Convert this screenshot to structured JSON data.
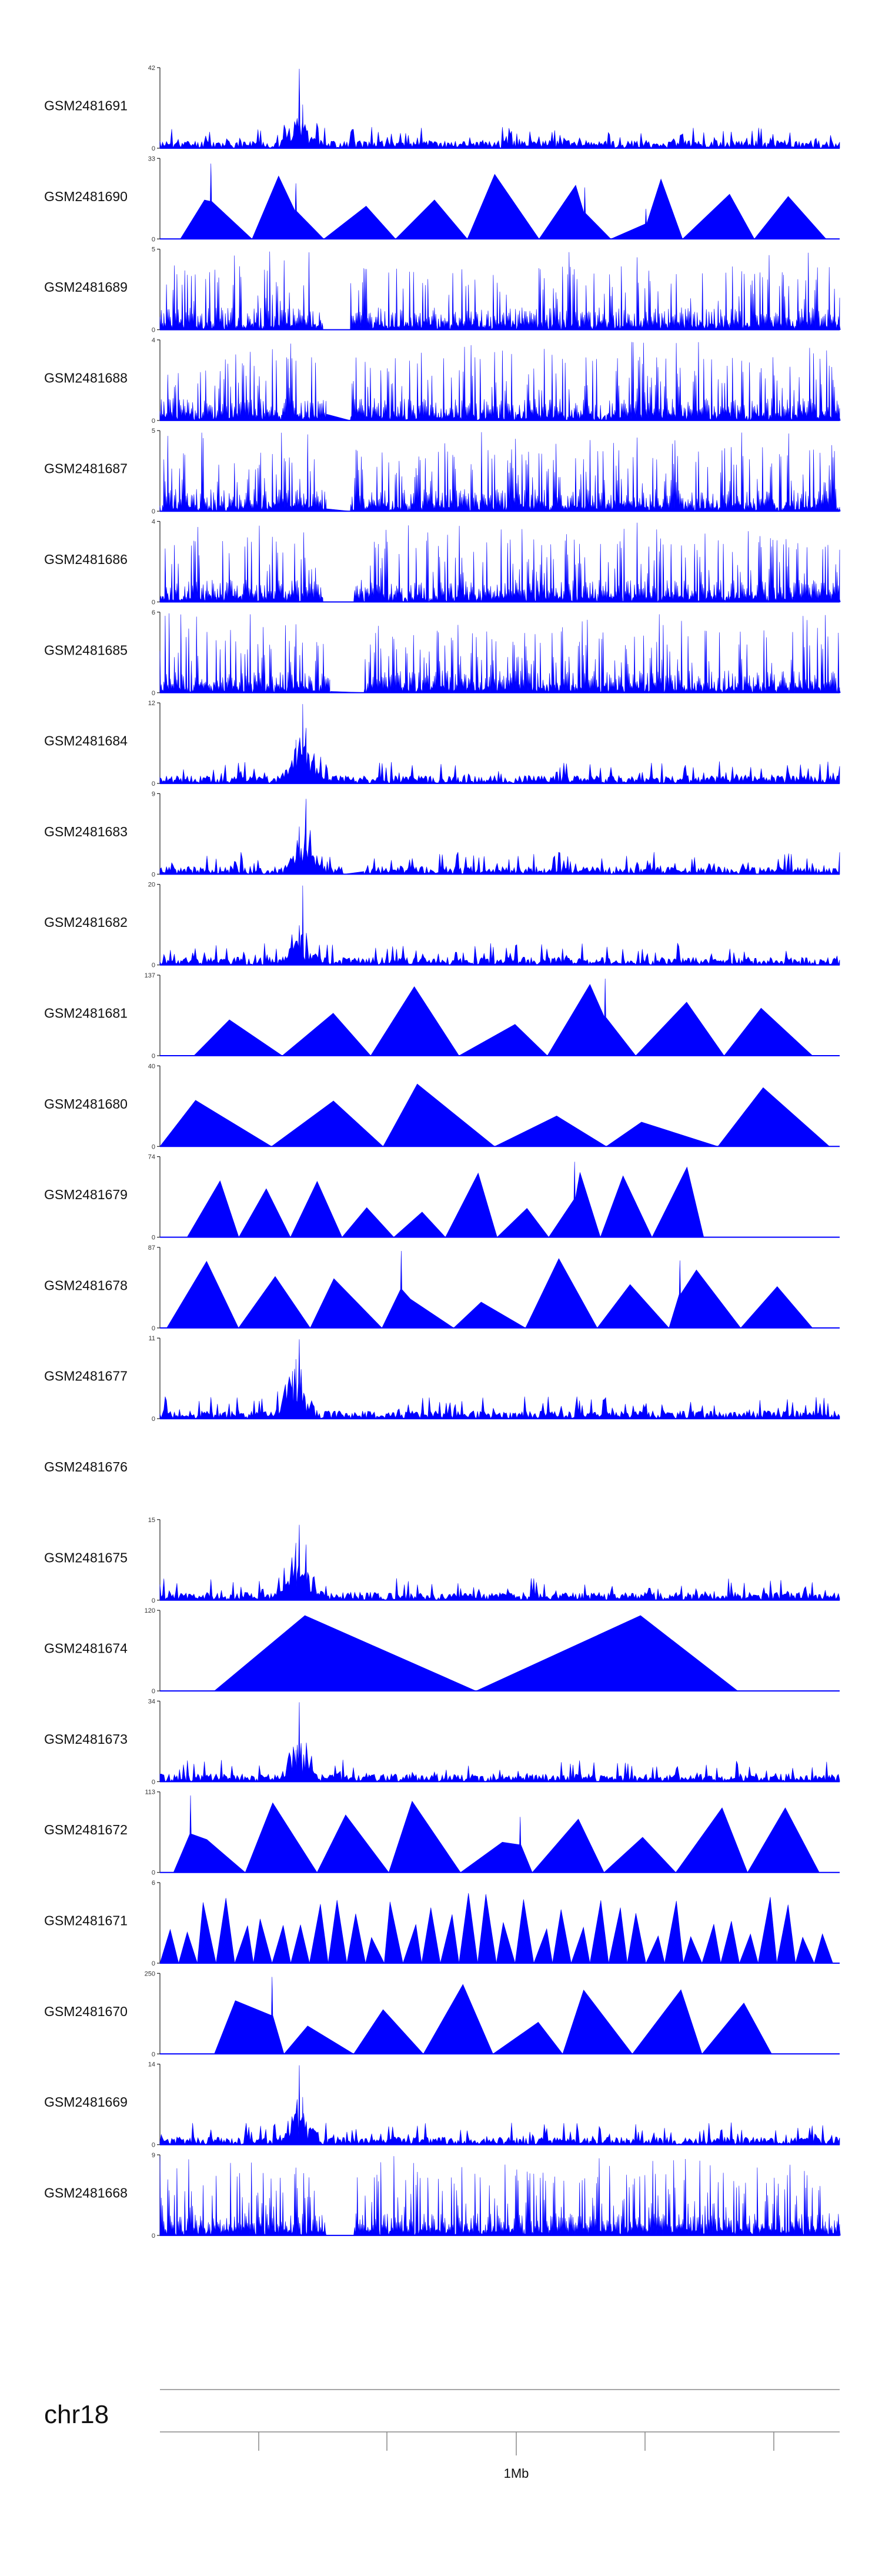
{
  "chart_data": {
    "type": "area",
    "fill_color": "#0000ff",
    "chromosome": "chr18",
    "scale_label": "1Mb",
    "tracks": [
      {
        "name": "GSM2481691",
        "ymin": 0,
        "ymax": 42,
        "profile": "peak",
        "seed": 11,
        "peaks": [
          [
            0.205,
            1.0
          ],
          [
            0.21,
            0.55
          ]
        ]
      },
      {
        "name": "GSM2481690",
        "ymin": 0,
        "ymax": 33,
        "profile": "triangles",
        "seed": 12,
        "peaks": [
          [
            0.075,
            0.95
          ],
          [
            0.2,
            0.7
          ],
          [
            0.625,
            0.65
          ],
          [
            0.715,
            0.38
          ]
        ]
      },
      {
        "name": "GSM2481689",
        "ymin": 0,
        "ymax": 5,
        "profile": "dense",
        "seed": 13,
        "gap": [
          0.24,
          0.28
        ]
      },
      {
        "name": "GSM2481688",
        "ymin": 0,
        "ymax": 4,
        "profile": "dense",
        "seed": 14,
        "gap": [
          0.245,
          0.28
        ]
      },
      {
        "name": "GSM2481687",
        "ymin": 0,
        "ymax": 5,
        "profile": "dense",
        "seed": 15,
        "gap": [
          0.245,
          0.28
        ]
      },
      {
        "name": "GSM2481686",
        "ymin": 0,
        "ymax": 4,
        "profile": "dense",
        "seed": 16,
        "gap": [
          0.24,
          0.285
        ]
      },
      {
        "name": "GSM2481685",
        "ymin": 0,
        "ymax": 6,
        "profile": "dense",
        "seed": 17,
        "gap": [
          0.25,
          0.3
        ]
      },
      {
        "name": "GSM2481684",
        "ymin": 0,
        "ymax": 12,
        "profile": "peak",
        "seed": 18,
        "peaks": [
          [
            0.21,
            1.0
          ],
          [
            0.2,
            0.55
          ],
          [
            0.215,
            0.7
          ]
        ]
      },
      {
        "name": "GSM2481683",
        "ymin": 0,
        "ymax": 9,
        "profile": "peak",
        "seed": 19,
        "peaks": [
          [
            0.215,
            0.95
          ],
          [
            0.205,
            0.6
          ]
        ],
        "gap": [
          0.27,
          0.3
        ]
      },
      {
        "name": "GSM2481682",
        "ymin": 0,
        "ymax": 20,
        "profile": "peak",
        "seed": 20,
        "peaks": [
          [
            0.21,
            1.0
          ],
          [
            0.205,
            0.5
          ]
        ]
      },
      {
        "name": "GSM2481681",
        "ymin": 0,
        "ymax": 137,
        "profile": "triangles",
        "seed": 21,
        "segment": [
          0.05,
          0.96
        ],
        "peaks": [
          [
            0.655,
            0.97
          ]
        ]
      },
      {
        "name": "GSM2481680",
        "ymin": 0,
        "ymax": 40,
        "profile": "triangles",
        "seed": 22,
        "segment": [
          0.0,
          0.985
        ]
      },
      {
        "name": "GSM2481679",
        "ymin": 0,
        "ymax": 74,
        "profile": "triangles",
        "seed": 23,
        "segment": [
          0.04,
          0.8
        ],
        "peaks": [
          [
            0.61,
            0.95
          ]
        ]
      },
      {
        "name": "GSM2481678",
        "ymin": 0,
        "ymax": 87,
        "profile": "triangles",
        "seed": 24,
        "segment": [
          0.01,
          0.96
        ],
        "peaks": [
          [
            0.355,
            0.97
          ],
          [
            0.765,
            0.85
          ]
        ]
      },
      {
        "name": "GSM2481677",
        "ymin": 0,
        "ymax": 11,
        "profile": "peak",
        "seed": 25,
        "peaks": [
          [
            0.205,
            1.0
          ],
          [
            0.2,
            0.75
          ],
          [
            0.195,
            0.6
          ]
        ]
      },
      {
        "name": "GSM2481676",
        "ymin": null,
        "ymax": null,
        "profile": "empty"
      },
      {
        "name": "GSM2481675",
        "ymin": 0,
        "ymax": 15,
        "profile": "peak",
        "seed": 27,
        "peaks": [
          [
            0.205,
            0.95
          ],
          [
            0.215,
            0.7
          ],
          [
            0.2,
            0.55
          ]
        ]
      },
      {
        "name": "GSM2481674",
        "ymin": 0,
        "ymax": 120,
        "profile": "triangles",
        "seed": 28,
        "segment": [
          0.08,
          0.85
        ],
        "tri_count": 2
      },
      {
        "name": "GSM2481673",
        "ymin": 0,
        "ymax": 34,
        "profile": "peak",
        "seed": 29,
        "peaks": [
          [
            0.205,
            1.0
          ],
          [
            0.2,
            0.4
          ]
        ]
      },
      {
        "name": "GSM2481672",
        "ymin": 0,
        "ymax": 113,
        "profile": "triangles",
        "seed": 30,
        "segment": [
          0.02,
          0.97
        ],
        "peaks": [
          [
            0.045,
            0.97
          ],
          [
            0.53,
            0.7
          ]
        ]
      },
      {
        "name": "GSM2481671",
        "ymin": 0,
        "ymax": 6,
        "profile": "triangles",
        "seed": 31,
        "segment": [
          0.0,
          0.99
        ],
        "tri_count": 36
      },
      {
        "name": "GSM2481670",
        "ymin": 0,
        "ymax": 250,
        "profile": "triangles",
        "seed": 32,
        "segment": [
          0.08,
          0.9
        ],
        "peaks": [
          [
            0.165,
            0.97
          ]
        ]
      },
      {
        "name": "GSM2481669",
        "ymin": 0,
        "ymax": 14,
        "profile": "peak",
        "seed": 33,
        "peaks": [
          [
            0.205,
            1.0
          ],
          [
            0.21,
            0.6
          ]
        ]
      },
      {
        "name": "GSM2481668",
        "ymin": 0,
        "ymax": 9,
        "profile": "dense",
        "seed": 34,
        "gap": [
          0.245,
          0.285
        ]
      }
    ]
  }
}
